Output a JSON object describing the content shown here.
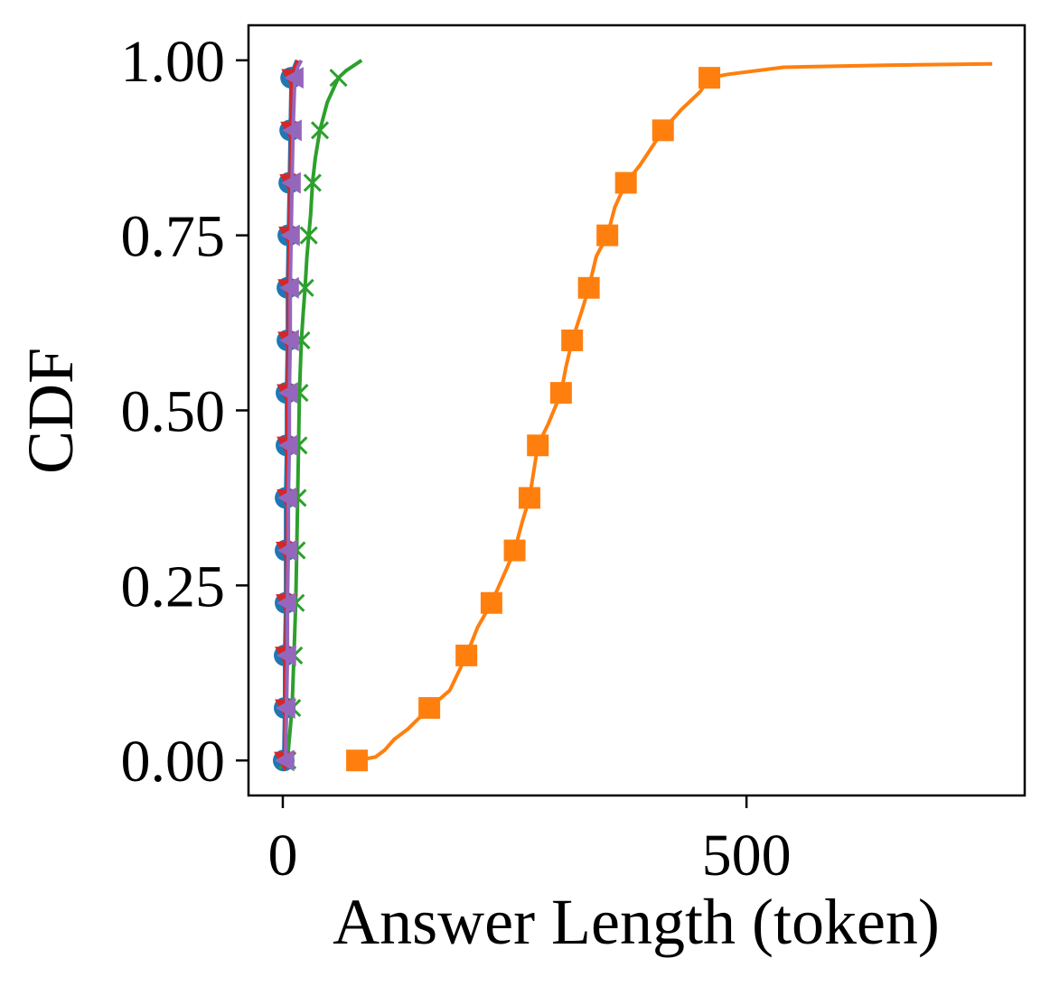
{
  "chart_data": {
    "type": "line",
    "title": "",
    "xlabel": "Answer Length (token)",
    "ylabel": "CDF",
    "xlim": [
      -37,
      800
    ],
    "ylim": [
      -0.05,
      1.05
    ],
    "xticks": [
      0,
      500
    ],
    "xtick_labels": [
      "0",
      "500"
    ],
    "yticks": [
      0,
      0.25,
      0.5,
      0.75,
      1.0
    ],
    "ytick_labels": [
      "0.00",
      "0.25",
      "0.50",
      "0.75",
      "1.00"
    ],
    "grid": false,
    "legend": "none",
    "series": [
      {
        "color": "#1f77b4",
        "marker": "circle",
        "x": [
          1,
          2,
          2,
          3,
          3,
          3,
          4,
          4,
          5,
          5,
          6,
          7,
          8,
          9,
          12,
          15
        ],
        "y": [
          0,
          0.075,
          0.15,
          0.225,
          0.3,
          0.375,
          0.45,
          0.525,
          0.6,
          0.675,
          0.75,
          0.825,
          0.9,
          0.975,
          0.99,
          1.0
        ]
      },
      {
        "color": "#ff7f0e",
        "marker": "square",
        "x": [
          80,
          100,
          110,
          120,
          135,
          158,
          180,
          198,
          210,
          225,
          240,
          250,
          258,
          266,
          275,
          286,
          300,
          305,
          312,
          322,
          330,
          338,
          350,
          358,
          370,
          385,
          395,
          410,
          430,
          450,
          460,
          480,
          540,
          650,
          765
        ],
        "y": [
          0,
          0.005,
          0.015,
          0.03,
          0.045,
          0.075,
          0.1,
          0.15,
          0.19,
          0.225,
          0.27,
          0.3,
          0.34,
          0.375,
          0.45,
          0.48,
          0.525,
          0.56,
          0.6,
          0.64,
          0.675,
          0.72,
          0.75,
          0.79,
          0.825,
          0.85,
          0.87,
          0.9,
          0.93,
          0.955,
          0.975,
          0.98,
          0.99,
          0.993,
          0.995
        ]
      },
      {
        "color": "#2ca02c",
        "marker": "x",
        "x": [
          5,
          10,
          12,
          14,
          15,
          16,
          17,
          18,
          20,
          22,
          24,
          26,
          28,
          30,
          32,
          35,
          40,
          48,
          60,
          68,
          85
        ],
        "y": [
          0,
          0.075,
          0.15,
          0.225,
          0.3,
          0.375,
          0.45,
          0.525,
          0.6,
          0.64,
          0.675,
          0.72,
          0.75,
          0.78,
          0.825,
          0.86,
          0.9,
          0.94,
          0.975,
          0.985,
          1.0
        ]
      },
      {
        "color": "#d62728",
        "marker": "triangle-down",
        "x": [
          2,
          3,
          3,
          4,
          4,
          5,
          5,
          5,
          6,
          6,
          7,
          8,
          9,
          10,
          13,
          16
        ],
        "y": [
          0,
          0.075,
          0.15,
          0.225,
          0.3,
          0.375,
          0.45,
          0.525,
          0.6,
          0.675,
          0.75,
          0.825,
          0.9,
          0.975,
          0.99,
          1.0
        ]
      },
      {
        "color": "#9467bd",
        "marker": "triangle-left",
        "x": [
          3,
          4,
          5,
          5,
          6,
          6,
          7,
          7,
          8,
          8,
          9,
          10,
          11,
          13,
          16,
          20
        ],
        "y": [
          0,
          0.075,
          0.15,
          0.225,
          0.3,
          0.375,
          0.45,
          0.525,
          0.6,
          0.675,
          0.75,
          0.825,
          0.9,
          0.975,
          0.99,
          1.0
        ]
      }
    ]
  }
}
